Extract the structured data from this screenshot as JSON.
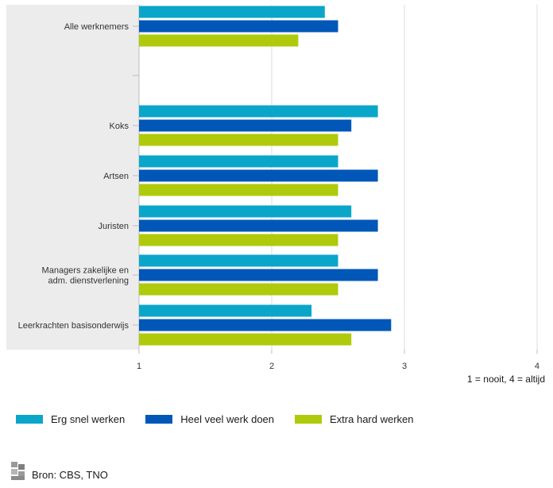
{
  "chart_data": {
    "type": "bar",
    "orientation": "horizontal",
    "categories": [
      "Alle werknemers",
      "",
      "Koks",
      "Artsen",
      "Juristen",
      "Managers zakelijke en adm. dienstverlening",
      "Leerkrachten basisonderwijs"
    ],
    "category_lines": [
      [
        "Alle werknemers"
      ],
      [],
      [
        "Koks"
      ],
      [
        "Artsen"
      ],
      [
        "Juristen"
      ],
      [
        "Managers zakelijke en",
        "adm. dienstverlening"
      ],
      [
        "Leerkrachten basisonderwijs"
      ]
    ],
    "series": [
      {
        "name": "Erg snel werken",
        "color": "#0aa6c9",
        "values": [
          2.4,
          null,
          2.8,
          2.5,
          2.6,
          2.5,
          2.3
        ]
      },
      {
        "name": "Heel veel werk doen",
        "color": "#0057b8",
        "values": [
          2.5,
          null,
          2.6,
          2.8,
          2.8,
          2.8,
          2.9
        ]
      },
      {
        "name": "Extra hard werken",
        "color": "#afca0b",
        "values": [
          2.2,
          null,
          2.5,
          2.5,
          2.5,
          2.5,
          2.6
        ]
      }
    ],
    "xlim": [
      1,
      4
    ],
    "xticks": [
      "1",
      "2",
      "3",
      "4"
    ],
    "xlabel": "1 = nooit, 4 = altijd",
    "grid": "vertical",
    "legend_position": "bottom"
  },
  "source": {
    "text": "Bron: CBS, TNO",
    "logo_icon": "cbs-logo-icon"
  }
}
